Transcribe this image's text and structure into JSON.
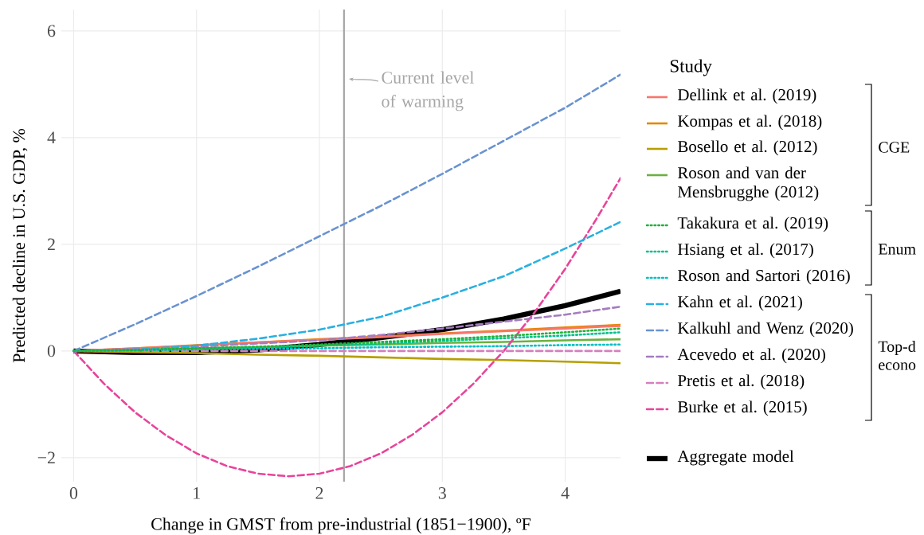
{
  "chart_data": {
    "type": "line",
    "xlabel": "Change in GMST from pre-industrial (1851−1900), ºF",
    "ylabel": "Predicted decline in U.S. GDP, %",
    "legend_title": "Study",
    "legend": "right",
    "grid": true,
    "x": [
      0,
      0.5,
      1,
      1.5,
      2,
      2.5,
      3,
      3.5,
      4,
      4.45
    ],
    "xlim": [
      -0.1,
      4.45
    ],
    "ylim": [
      -2.45,
      6.4
    ],
    "xticks": [
      0,
      1,
      2,
      3,
      4
    ],
    "yticks": [
      {
        "value": -2,
        "label": "−2"
      },
      0,
      2,
      4,
      6
    ],
    "series": [
      {
        "name": "Dellink et al. (2019)",
        "color": "#f8766d",
        "line_style": "solid",
        "values": [
          0,
          0.05,
          0.1,
          0.16,
          0.21,
          0.26,
          0.32,
          0.37,
          0.42,
          0.47
        ]
      },
      {
        "name": "Kompas et al. (2018)",
        "color": "#e58700",
        "line_style": "solid",
        "values": [
          0,
          0.05,
          0.11,
          0.16,
          0.22,
          0.27,
          0.33,
          0.38,
          0.44,
          0.49
        ]
      },
      {
        "name": "Bosello et al. (2012)",
        "color": "#b79f00",
        "line_style": "solid",
        "values": [
          0,
          -0.02,
          -0.04,
          -0.07,
          -0.09,
          -0.12,
          -0.15,
          -0.17,
          -0.2,
          -0.23
        ]
      },
      {
        "name": "Roson and van der Mensbrugghe (2012)",
        "color": "#6bb140",
        "line_style": "solid",
        "values": [
          0,
          0.02,
          0.05,
          0.07,
          0.1,
          0.12,
          0.15,
          0.17,
          0.2,
          0.22
        ]
      },
      {
        "name": "Takakura et al. (2019)",
        "color": "#1fb33a",
        "line_style": "dotted",
        "values": [
          0,
          0.02,
          0.05,
          0.08,
          0.12,
          0.17,
          0.22,
          0.28,
          0.35,
          0.42
        ]
      },
      {
        "name": "Hsiang et al. (2017)",
        "color": "#00c08b",
        "line_style": "dotted",
        "values": [
          0,
          0.02,
          0.04,
          0.07,
          0.1,
          0.14,
          0.19,
          0.24,
          0.29,
          0.35
        ]
      },
      {
        "name": "Roson and Sartori (2016)",
        "color": "#00bfc4",
        "line_style": "dotted",
        "values": [
          0,
          0.01,
          0.03,
          0.04,
          0.05,
          0.07,
          0.08,
          0.09,
          0.11,
          0.12
        ]
      },
      {
        "name": "Kahn et al. (2021)",
        "color": "#29b0e0",
        "line_style": "dashed",
        "values": [
          0,
          0.02,
          0.1,
          0.23,
          0.4,
          0.64,
          1.0,
          1.4,
          1.92,
          2.42
        ]
      },
      {
        "name": "Kalkuhl and Wenz (2020)",
        "color": "#6a93cf",
        "line_style": "dashed",
        "values": [
          0,
          0.5,
          1.03,
          1.58,
          2.15,
          2.72,
          3.32,
          3.94,
          4.56,
          5.18
        ]
      },
      {
        "name": "Acevedo et al. (2020)",
        "color": "#a57cc0",
        "line_style": "dashed",
        "values": [
          0,
          0.04,
          0.08,
          0.14,
          0.2,
          0.3,
          0.42,
          0.55,
          0.68,
          0.83
        ]
      },
      {
        "name": "Pretis et al. (2018)",
        "color": "#d57fbe",
        "line_style": "dashed",
        "values": [
          0,
          0,
          0,
          0,
          0,
          0,
          0,
          0,
          0,
          0
        ]
      },
      {
        "name": "Burke et al. (2015)",
        "color": "#e8449a",
        "line_style": "dashed",
        "x": [
          0,
          0.25,
          0.5,
          0.75,
          1,
          1.25,
          1.5,
          1.75,
          2,
          2.25,
          2.5,
          2.75,
          3,
          3.25,
          3.5,
          3.75,
          4,
          4.25,
          4.45
        ],
        "values": [
          0,
          -0.62,
          -1.15,
          -1.58,
          -1.92,
          -2.16,
          -2.3,
          -2.35,
          -2.3,
          -2.16,
          -1.92,
          -1.58,
          -1.15,
          -0.62,
          0,
          0.72,
          1.54,
          2.46,
          3.24
        ]
      },
      {
        "name": "Aggregate model",
        "color": "#000000",
        "line_style": "solid",
        "values": [
          0,
          -0.03,
          -0.03,
          0.02,
          0.12,
          0.25,
          0.4,
          0.6,
          0.85,
          1.12
        ]
      }
    ],
    "ref_lines": [
      {
        "axis": "x",
        "value": 2.2,
        "label": "Current level of warming",
        "color": "#a6a6a6"
      }
    ],
    "annotations": [
      "CGE",
      "Enum",
      "Top-d",
      "econo"
    ]
  }
}
